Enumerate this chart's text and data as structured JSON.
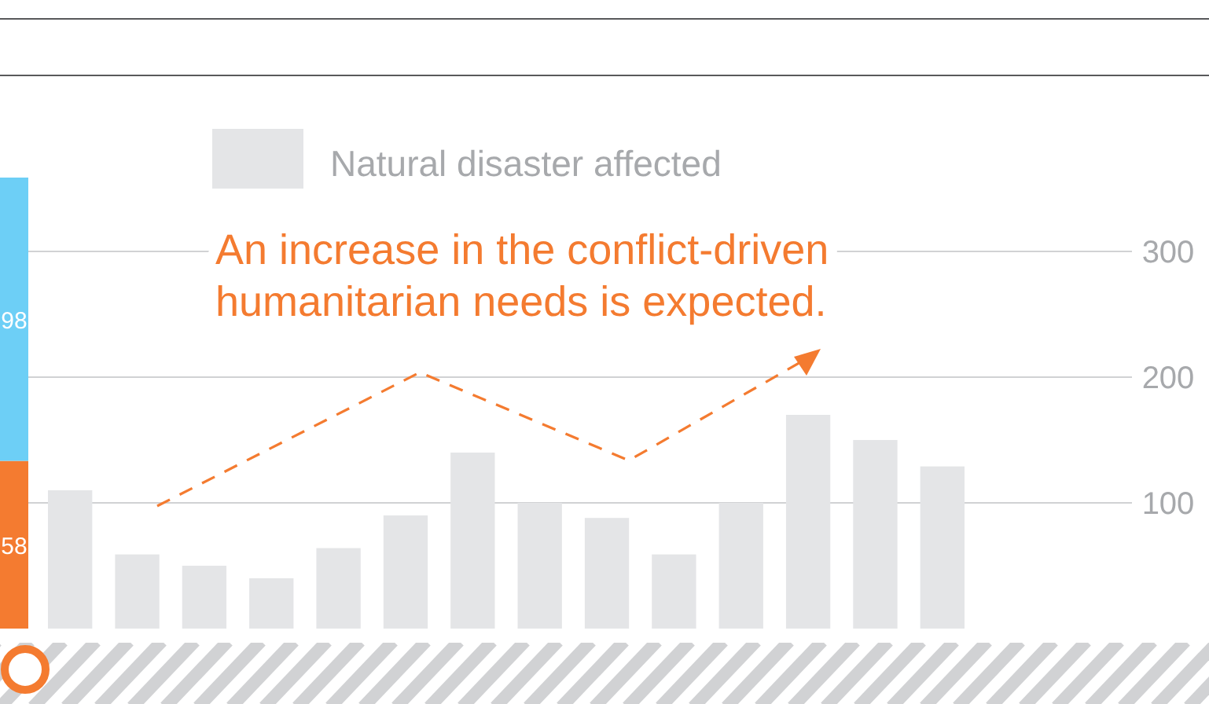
{
  "chart_data": [
    {
      "type": "bar",
      "stacked": true,
      "categories": [
        null
      ],
      "data_labels": true,
      "series": [
        {
          "color": "#f47b30",
          "values": [
            58
          ]
        },
        {
          "color": "#6dcff6",
          "values": [
            98
          ]
        }
      ]
    },
    {
      "type": "bar",
      "categories": [
        null,
        null,
        null,
        null,
        null,
        null,
        null,
        null,
        null,
        null,
        null,
        null,
        null,
        null
      ],
      "series": [
        {
          "name": "Natural disaster affected",
          "color": "#e4e5e7",
          "values": [
            110,
            59,
            50,
            40,
            64,
            90,
            140,
            100,
            88,
            59,
            100,
            170,
            150,
            129
          ]
        }
      ],
      "ylim": [
        0,
        300
      ],
      "yticks": [
        100,
        200,
        300
      ],
      "grid": "y",
      "legend": "top",
      "annotations": [
        "An increase in the conflict-driven humanitarian needs is expected."
      ]
    }
  ]
}
